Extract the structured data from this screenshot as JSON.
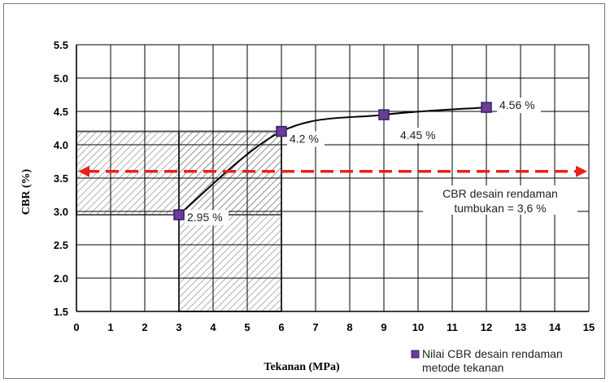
{
  "chart_data": {
    "type": "line",
    "title": "",
    "xlabel": "Tekanan (MPa)",
    "ylabel": "CBR (%)",
    "xlim": [
      0,
      15
    ],
    "ylim": [
      1.5,
      5.5
    ],
    "x_ticks": [
      "0",
      "1",
      "2",
      "3",
      "4",
      "5",
      "6",
      "7",
      "8",
      "9",
      "10",
      "11",
      "12",
      "13",
      "14",
      "15"
    ],
    "y_ticks": [
      "1.5",
      "2.0",
      "2.5",
      "3.0",
      "3.5",
      "4.0",
      "4.5",
      "5.0",
      "5.5"
    ],
    "grid": true,
    "legend_position": "bottom-right",
    "series": [
      {
        "name": "Nilai CBR desain rendaman metode tekanan",
        "x": [
          3,
          6,
          9,
          12
        ],
        "y": [
          2.95,
          4.2,
          4.45,
          4.56
        ],
        "marker": "square",
        "color": "#6a3d9a"
      }
    ],
    "point_labels": [
      "2.95 %",
      "4.2 %",
      "4.45 %",
      "4.56 %"
    ],
    "reference_line": {
      "y": 3.6,
      "color": "#e8211b",
      "style": "dashed"
    },
    "annotation": {
      "line1": "CBR desain rendaman",
      "line2": "tumbukan   = 3,6 %"
    },
    "legend_line1": "Nilai CBR desain rendaman",
    "legend_line2": "metode tekanan",
    "colors": {
      "marker_fill": "#6a3d9a",
      "marker_edge": "#3a1f66",
      "dash": "#e8211b",
      "hatch": "#8a8a8a"
    }
  }
}
